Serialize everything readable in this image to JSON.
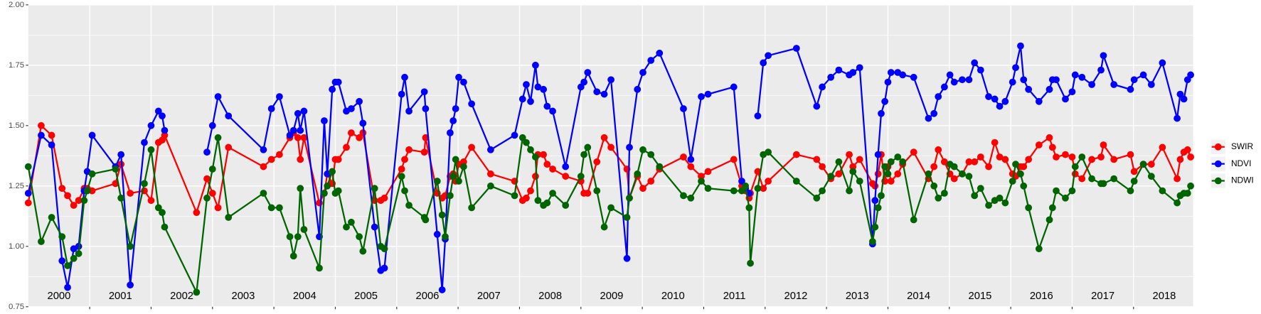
{
  "chart_data": {
    "type": "line",
    "x": [
      2000.0,
      2000.21,
      2000.38,
      2000.55,
      2000.64,
      2000.74,
      2000.82,
      2000.91,
      2000.96,
      2001.04,
      2001.42,
      2001.51,
      2001.66,
      2001.89,
      2002.0,
      2002.12,
      2002.18,
      2002.22,
      2002.74,
      2002.91,
      2003.0,
      2003.09,
      2003.26,
      2003.83,
      2003.96,
      2004.09,
      2004.26,
      2004.32,
      2004.39,
      2004.43,
      2004.49,
      2004.74,
      2004.82,
      2004.87,
      2004.95,
      2005.0,
      2005.05,
      2005.18,
      2005.26,
      2005.39,
      2005.45,
      2005.64,
      2005.74,
      2005.8,
      2006.08,
      2006.13,
      2006.2,
      2006.45,
      2006.47,
      2006.66,
      2006.74,
      2006.79,
      2006.87,
      2006.92,
      2006.96,
      2007.01,
      2007.09,
      2007.22,
      2007.53,
      2007.92,
      2008.05,
      2008.11,
      2008.18,
      2008.26,
      2008.3,
      2008.39,
      2008.45,
      2008.54,
      2008.75,
      2009.0,
      2009.05,
      2009.11,
      2009.26,
      2009.38,
      2009.49,
      2009.75,
      2009.79,
      2009.92,
      2010.01,
      2010.14,
      2010.28,
      2010.67,
      2010.79,
      2010.96,
      2011.07,
      2011.49,
      2011.62,
      2011.68,
      2011.74,
      2011.76,
      2011.88,
      2011.97,
      2012.05,
      2012.51,
      2012.84,
      2012.93,
      2013.07,
      2013.2,
      2013.37,
      2013.43,
      2013.54,
      2013.75,
      2013.79,
      2013.84,
      2013.89,
      2013.95,
      2014.0,
      2014.05,
      2014.16,
      2014.24,
      2014.42,
      2014.66,
      2014.75,
      2014.82,
      2014.92,
      2015.01,
      2015.08,
      2015.21,
      2015.32,
      2015.41,
      2015.51,
      2015.64,
      2015.74,
      2015.82,
      2015.91,
      2016.03,
      2016.08,
      2016.16,
      2016.21,
      2016.29,
      2016.46,
      2016.63,
      2016.68,
      2016.74,
      2016.89,
      2017.0,
      2017.05,
      2017.16,
      2017.32,
      2017.47,
      2017.51,
      2017.68,
      2017.95,
      2018.01,
      2018.16,
      2018.29,
      2018.47,
      2018.71,
      2018.76,
      2018.82,
      2018.88,
      2018.93
    ],
    "series": [
      {
        "name": "SWIR",
        "color": "#ff0000",
        "values": [
          1.18,
          1.5,
          1.46,
          1.24,
          1.21,
          1.17,
          1.19,
          1.24,
          1.24,
          1.23,
          1.26,
          1.34,
          1.22,
          1.23,
          1.19,
          1.43,
          1.44,
          1.46,
          1.14,
          1.28,
          1.22,
          1.16,
          1.41,
          1.33,
          1.36,
          1.38,
          1.45,
          1.47,
          1.45,
          1.36,
          1.45,
          1.18,
          1.22,
          1.3,
          1.26,
          1.36,
          1.36,
          1.41,
          1.47,
          1.45,
          1.47,
          1.19,
          1.19,
          1.2,
          1.32,
          1.36,
          1.4,
          1.39,
          1.45,
          1.22,
          1.2,
          1.21,
          1.29,
          1.3,
          1.27,
          1.34,
          1.35,
          1.41,
          1.3,
          1.27,
          1.19,
          1.2,
          1.23,
          1.29,
          1.38,
          1.38,
          1.34,
          1.32,
          1.29,
          1.27,
          1.22,
          1.22,
          1.35,
          1.45,
          1.41,
          1.32,
          1.2,
          1.29,
          1.24,
          1.27,
          1.32,
          1.37,
          1.33,
          1.29,
          1.31,
          1.36,
          1.25,
          1.23,
          1.2,
          1.22,
          1.31,
          1.24,
          1.27,
          1.38,
          1.36,
          1.33,
          1.28,
          1.3,
          1.38,
          1.33,
          1.36,
          1.26,
          1.25,
          1.3,
          1.38,
          1.27,
          1.33,
          1.27,
          1.3,
          1.34,
          1.39,
          1.28,
          1.33,
          1.4,
          1.35,
          1.3,
          1.28,
          1.3,
          1.35,
          1.35,
          1.37,
          1.33,
          1.43,
          1.37,
          1.36,
          1.3,
          1.29,
          1.33,
          1.33,
          1.36,
          1.42,
          1.45,
          1.41,
          1.37,
          1.38,
          1.37,
          1.3,
          1.28,
          1.36,
          1.37,
          1.42,
          1.36,
          1.38,
          1.31,
          1.34,
          1.34,
          1.41,
          1.28,
          1.36,
          1.39,
          1.4,
          1.37
        ]
      },
      {
        "name": "NDVI",
        "color": "#0000ff",
        "values": [
          1.22,
          1.46,
          1.42,
          0.94,
          0.83,
          0.99,
          1.0,
          1.23,
          1.31,
          1.46,
          1.33,
          1.38,
          0.84,
          1.43,
          1.5,
          1.56,
          1.54,
          1.48,
          null,
          1.39,
          1.5,
          1.62,
          1.54,
          1.4,
          1.57,
          1.62,
          1.46,
          1.48,
          1.55,
          1.48,
          1.56,
          1.04,
          1.52,
          1.3,
          1.65,
          1.68,
          1.68,
          1.56,
          1.57,
          1.6,
          1.51,
          1.08,
          0.9,
          0.91,
          1.63,
          1.7,
          1.56,
          1.64,
          1.57,
          1.05,
          0.82,
          1.03,
          1.47,
          1.52,
          1.57,
          1.7,
          1.68,
          1.59,
          1.4,
          1.46,
          1.61,
          1.67,
          1.6,
          1.75,
          1.66,
          1.65,
          1.58,
          1.56,
          1.33,
          1.66,
          1.68,
          1.72,
          1.64,
          1.63,
          1.69,
          0.95,
          1.41,
          1.65,
          1.72,
          1.77,
          1.8,
          1.57,
          1.36,
          1.62,
          1.63,
          1.66,
          1.27,
          1.24,
          1.22,
          null,
          1.54,
          1.76,
          1.79,
          1.82,
          1.58,
          1.66,
          1.7,
          1.73,
          1.71,
          1.72,
          1.74,
          1.01,
          1.19,
          1.38,
          1.55,
          1.6,
          1.68,
          1.72,
          1.72,
          1.71,
          1.7,
          1.53,
          1.55,
          1.62,
          1.66,
          1.71,
          1.68,
          1.69,
          1.69,
          1.76,
          1.73,
          1.62,
          1.61,
          1.58,
          1.6,
          1.68,
          1.74,
          1.83,
          1.69,
          1.65,
          1.6,
          1.65,
          1.69,
          1.69,
          1.61,
          1.64,
          1.71,
          1.7,
          1.67,
          1.73,
          1.79,
          1.67,
          1.65,
          1.69,
          1.71,
          1.67,
          1.76,
          1.53,
          1.63,
          1.61,
          1.69,
          1.71
        ]
      },
      {
        "name": "NDWI",
        "color": "#006400",
        "values": [
          1.33,
          1.02,
          1.12,
          1.04,
          0.92,
          0.95,
          0.97,
          1.19,
          1.23,
          1.3,
          1.32,
          1.2,
          1.0,
          1.26,
          1.4,
          1.16,
          1.14,
          1.08,
          0.81,
          1.2,
          1.32,
          1.45,
          1.12,
          1.22,
          1.16,
          1.16,
          1.04,
          0.96,
          1.04,
          1.24,
          1.07,
          0.91,
          1.22,
          1.25,
          1.31,
          1.22,
          1.23,
          1.08,
          1.1,
          1.04,
          0.98,
          1.24,
          1.0,
          0.99,
          1.29,
          1.23,
          1.17,
          1.12,
          1.11,
          1.27,
          1.13,
          1.04,
          1.21,
          1.29,
          1.36,
          1.27,
          1.33,
          1.16,
          1.25,
          1.21,
          1.45,
          1.43,
          1.4,
          1.37,
          1.19,
          1.17,
          1.18,
          1.22,
          1.17,
          1.29,
          1.38,
          1.41,
          1.23,
          1.08,
          1.16,
          1.12,
          1.2,
          1.3,
          1.4,
          1.38,
          1.33,
          1.21,
          1.2,
          1.27,
          1.24,
          1.23,
          1.23,
          1.25,
          1.16,
          0.93,
          1.24,
          1.38,
          1.39,
          1.27,
          1.2,
          1.23,
          1.29,
          1.35,
          1.23,
          1.31,
          1.27,
          1.02,
          1.08,
          1.16,
          1.21,
          1.33,
          1.3,
          1.35,
          1.37,
          1.35,
          1.11,
          1.3,
          1.25,
          1.2,
          1.22,
          1.34,
          1.33,
          1.3,
          1.29,
          1.21,
          1.24,
          1.17,
          1.19,
          1.2,
          1.18,
          1.27,
          1.34,
          1.3,
          1.25,
          1.16,
          0.99,
          1.11,
          1.16,
          1.23,
          1.2,
          1.23,
          1.33,
          1.37,
          1.28,
          1.26,
          1.26,
          1.28,
          1.23,
          1.27,
          1.34,
          1.29,
          1.23,
          1.18,
          1.21,
          1.22,
          1.22,
          1.25
        ]
      }
    ],
    "xlim": [
      2000,
      2018.97
    ],
    "xticks": [
      2001,
      2002,
      2003,
      2004,
      2005,
      2006,
      2007,
      2008,
      2009,
      2010,
      2011,
      2012,
      2013,
      2014,
      2015,
      2016,
      2017,
      2018
    ],
    "year_labels": [
      "2000",
      "2001",
      "2002",
      "2003",
      "2004",
      "2005",
      "2006",
      "2007",
      "2008",
      "2009",
      "2010",
      "2011",
      "2012",
      "2013",
      "2014",
      "2015",
      "2016",
      "2017",
      "2018"
    ],
    "ylim": [
      0.75,
      2.0
    ],
    "yticks": [
      {
        "value": 0.75,
        "label": "0.75"
      },
      {
        "value": 1.0,
        "label": "1.00"
      },
      {
        "value": 1.25,
        "label": "1.25"
      },
      {
        "value": 1.5,
        "label": "1.50"
      },
      {
        "value": 1.75,
        "label": "1.75"
      },
      {
        "value": 2.0,
        "label": "2.00"
      }
    ],
    "grid": true,
    "legend": "right"
  }
}
